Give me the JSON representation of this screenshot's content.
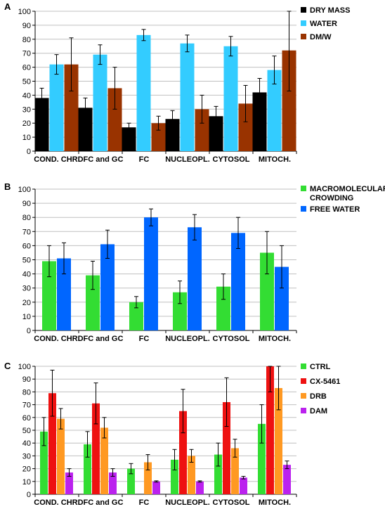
{
  "chart_data": [
    {
      "type": "bar",
      "panel_label": "A",
      "categories": [
        "COND. CHR.",
        "DFC and GC",
        "FC",
        "NUCLEOPL.",
        "CYTOSOL",
        "MITOCH."
      ],
      "ylim": [
        0,
        100
      ],
      "yticks": [
        0,
        10,
        20,
        30,
        40,
        50,
        60,
        70,
        80,
        90,
        100
      ],
      "grid": true,
      "legend_position": "right",
      "series": [
        {
          "name": "DRY MASS",
          "color": "#000000",
          "values": [
            38,
            31,
            17,
            23,
            25,
            42
          ],
          "errors": [
            7,
            7,
            3,
            6,
            7,
            10
          ]
        },
        {
          "name": "WATER",
          "color": "#33ccff",
          "values": [
            62,
            69,
            83,
            77,
            75,
            58
          ],
          "errors": [
            7,
            7,
            4,
            6,
            7,
            10
          ]
        },
        {
          "name": "DM/W",
          "color": "#993300",
          "values": [
            62,
            45,
            20,
            30,
            34,
            72
          ],
          "errors": [
            19,
            15,
            5,
            10,
            13,
            29
          ]
        }
      ]
    },
    {
      "type": "bar",
      "panel_label": "B",
      "categories": [
        "COND. CHR.",
        "DFC and GC",
        "FC",
        "NUCLEOPL.",
        "CYTOSOL",
        "MITOCH."
      ],
      "ylim": [
        0,
        100
      ],
      "yticks": [
        0,
        10,
        20,
        30,
        40,
        50,
        60,
        70,
        80,
        90,
        100
      ],
      "grid": true,
      "legend_position": "right",
      "series": [
        {
          "name": "MACROMOLECULAR CROWDING",
          "color": "#33dd33",
          "values": [
            49,
            39,
            20,
            27,
            31,
            55
          ],
          "errors": [
            11,
            10,
            4,
            8,
            9,
            15
          ]
        },
        {
          "name": "FREE WATER",
          "color": "#0066ff",
          "values": [
            51,
            61,
            80,
            73,
            69,
            45
          ],
          "errors": [
            11,
            10,
            6,
            9,
            11,
            15
          ]
        }
      ]
    },
    {
      "type": "bar",
      "panel_label": "C",
      "categories": [
        "COND. CHR.",
        "DFC and GC",
        "FC",
        "NUCLEOPL.",
        "CYTOSOL",
        "MITOCH."
      ],
      "ylim": [
        0,
        100
      ],
      "yticks": [
        0,
        10,
        20,
        30,
        40,
        50,
        60,
        70,
        80,
        90,
        100
      ],
      "grid": true,
      "legend_position": "right",
      "series": [
        {
          "name": "CTRL",
          "color": "#33dd33",
          "values": [
            49,
            39,
            20,
            27,
            31,
            55
          ],
          "errors": [
            11,
            10,
            4,
            8,
            9,
            15
          ]
        },
        {
          "name": "CX-5461",
          "color": "#ee1111",
          "values": [
            79,
            71,
            null,
            65,
            72,
            100
          ],
          "errors": [
            18,
            16,
            null,
            17,
            19,
            20
          ]
        },
        {
          "name": "DRB",
          "color": "#ff9922",
          "values": [
            59,
            52,
            25,
            30,
            36,
            83
          ],
          "errors": [
            8,
            8,
            6,
            5,
            7,
            17
          ]
        },
        {
          "name": "DAM",
          "color": "#bb22ee",
          "values": [
            17,
            17,
            10,
            10,
            13,
            23
          ],
          "errors": [
            3,
            3,
            0.5,
            0.5,
            1,
            3
          ]
        }
      ]
    }
  ]
}
